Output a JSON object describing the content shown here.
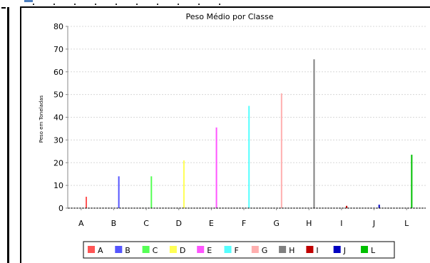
{
  "chart_data": {
    "type": "bar",
    "title": "Peso Médio por Classe",
    "ylabel": "Peso em Toneladas",
    "xlabel": "",
    "ylim": [
      0,
      80
    ],
    "yticks": [
      0,
      10,
      20,
      30,
      40,
      50,
      60,
      70,
      80
    ],
    "grid": true,
    "legend_position": "bottom",
    "categories": [
      "A",
      "B",
      "C",
      "D",
      "E",
      "F",
      "G",
      "H",
      "I",
      "J",
      "L"
    ],
    "values": [
      5,
      14,
      14,
      21,
      35.5,
      45,
      50.5,
      65.5,
      1,
      1.5,
      23.5
    ],
    "colors": [
      "#ff5555",
      "#5555ff",
      "#55ff55",
      "#ffff55",
      "#ff55ff",
      "#55ffff",
      "#ffafaf",
      "#808080",
      "#c00000",
      "#0000c0",
      "#00c000"
    ]
  }
}
